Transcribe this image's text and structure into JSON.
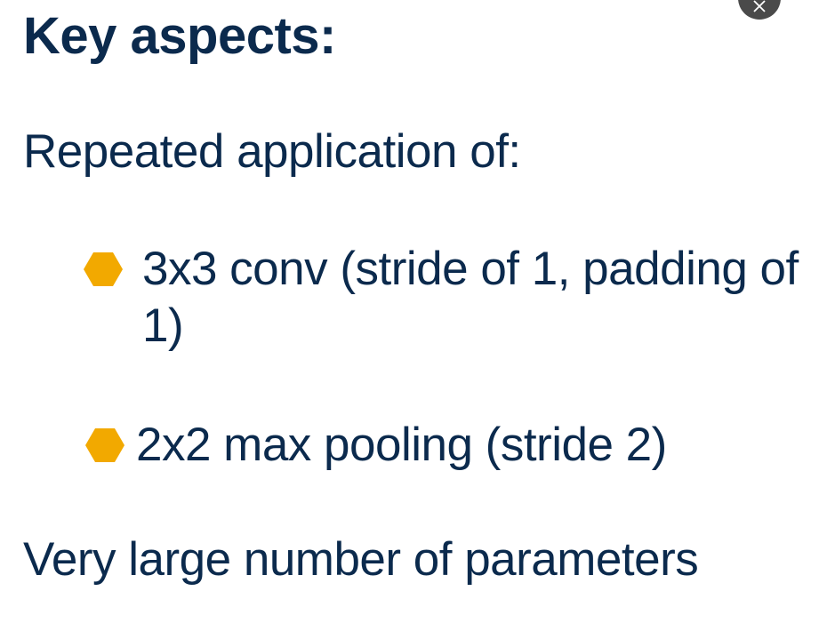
{
  "slide": {
    "heading": "Key aspects:",
    "intro": "Repeated application of:",
    "bullets": [
      "3x3 conv (stride of 1, padding of 1)",
      "2x2 max pooling (stride 2)"
    ],
    "footer": "Very large number of parameters"
  },
  "colors": {
    "text": "#0b2a4d",
    "bullet": "#f2a900",
    "close_button": "#4a4a4a"
  },
  "icons": {
    "bullet": "hexagon-bullet-icon",
    "close": "close-icon"
  }
}
